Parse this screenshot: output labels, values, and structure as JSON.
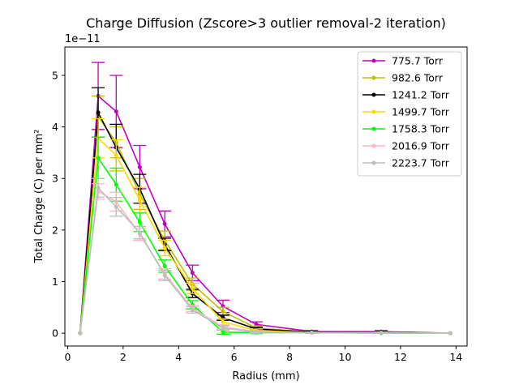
{
  "chart_data": {
    "type": "line",
    "title": "Charge Diffusion (Zscore>3 outlier removal-2 iteration)",
    "xlabel": "Radius (mm)",
    "ylabel": "Total Charge (C) per mm²",
    "y_offset_label": "1e−11",
    "xlim": [
      -0.1,
      14.4
    ],
    "ylim": [
      -0.25,
      5.55
    ],
    "x_ticks": [
      0,
      2,
      4,
      6,
      8,
      10,
      12,
      14
    ],
    "y_ticks": [
      0,
      1,
      2,
      3,
      4,
      5
    ],
    "grid": false,
    "legend_position": "top-right",
    "error_bars": true,
    "x": [
      0.45,
      1.1,
      1.75,
      2.6,
      3.5,
      4.5,
      5.6,
      6.8,
      8.8,
      11.3,
      13.8
    ],
    "series": [
      {
        "name": "775.7 Torr",
        "color": "#bf00bf",
        "values": [
          0,
          4.6,
          4.3,
          3.22,
          2.12,
          1.17,
          0.52,
          0.17,
          0.03,
          0.03,
          0.0
        ],
        "errors": [
          0,
          0.65,
          0.7,
          0.42,
          0.25,
          0.15,
          0.12,
          0.05,
          0.02,
          0.02,
          0.0
        ]
      },
      {
        "name": "982.6 Torr",
        "color": "#bfbf00",
        "values": [
          0,
          4.2,
          3.7,
          2.7,
          1.8,
          0.95,
          0.42,
          0.1,
          0.02,
          0.02,
          0.0
        ],
        "errors": [
          0,
          0.4,
          0.3,
          0.3,
          0.18,
          0.12,
          0.08,
          0.04,
          0.02,
          0.02,
          0.0
        ]
      },
      {
        "name": "1241.2 Torr",
        "color": "#000000",
        "values": [
          0,
          4.28,
          3.6,
          2.8,
          1.72,
          0.77,
          0.3,
          0.08,
          0.02,
          0.02,
          0.0
        ],
        "errors": [
          0,
          0.48,
          0.45,
          0.28,
          0.12,
          0.08,
          0.05,
          0.03,
          0.02,
          0.02,
          0.0
        ]
      },
      {
        "name": "1499.7 Torr",
        "color": "#ffd700",
        "values": [
          0,
          3.78,
          3.45,
          2.58,
          1.65,
          0.87,
          0.22,
          0.05,
          0.01,
          0.01,
          0.0
        ],
        "errors": [
          0,
          0.38,
          0.3,
          0.25,
          0.15,
          0.1,
          0.06,
          0.03,
          0.01,
          0.01,
          0.0
        ]
      },
      {
        "name": "1758.3 Torr",
        "color": "#00ff00",
        "values": [
          0,
          3.4,
          2.88,
          2.15,
          1.3,
          0.55,
          0.02,
          0.01,
          0.01,
          0.0,
          0.0
        ],
        "errors": [
          0,
          0.4,
          0.32,
          0.18,
          0.12,
          0.08,
          0.04,
          0.02,
          0.01,
          0.0,
          0.0
        ]
      },
      {
        "name": "2016.9 Torr",
        "color": "#ffb6c1",
        "values": [
          0,
          2.75,
          2.55,
          1.92,
          1.15,
          0.48,
          0.12,
          0.03,
          0.01,
          0.01,
          0.0
        ],
        "errors": [
          0,
          0.15,
          0.18,
          0.12,
          0.1,
          0.06,
          0.04,
          0.02,
          0.01,
          0.01,
          0.0
        ]
      },
      {
        "name": "2223.7 Torr",
        "color": "#bebebe",
        "values": [
          0,
          2.82,
          2.45,
          1.95,
          1.12,
          0.45,
          0.1,
          0.02,
          0.01,
          0.01,
          0.0
        ],
        "errors": [
          0,
          0.18,
          0.18,
          0.12,
          0.1,
          0.06,
          0.04,
          0.02,
          0.01,
          0.01,
          0.0
        ]
      }
    ]
  }
}
